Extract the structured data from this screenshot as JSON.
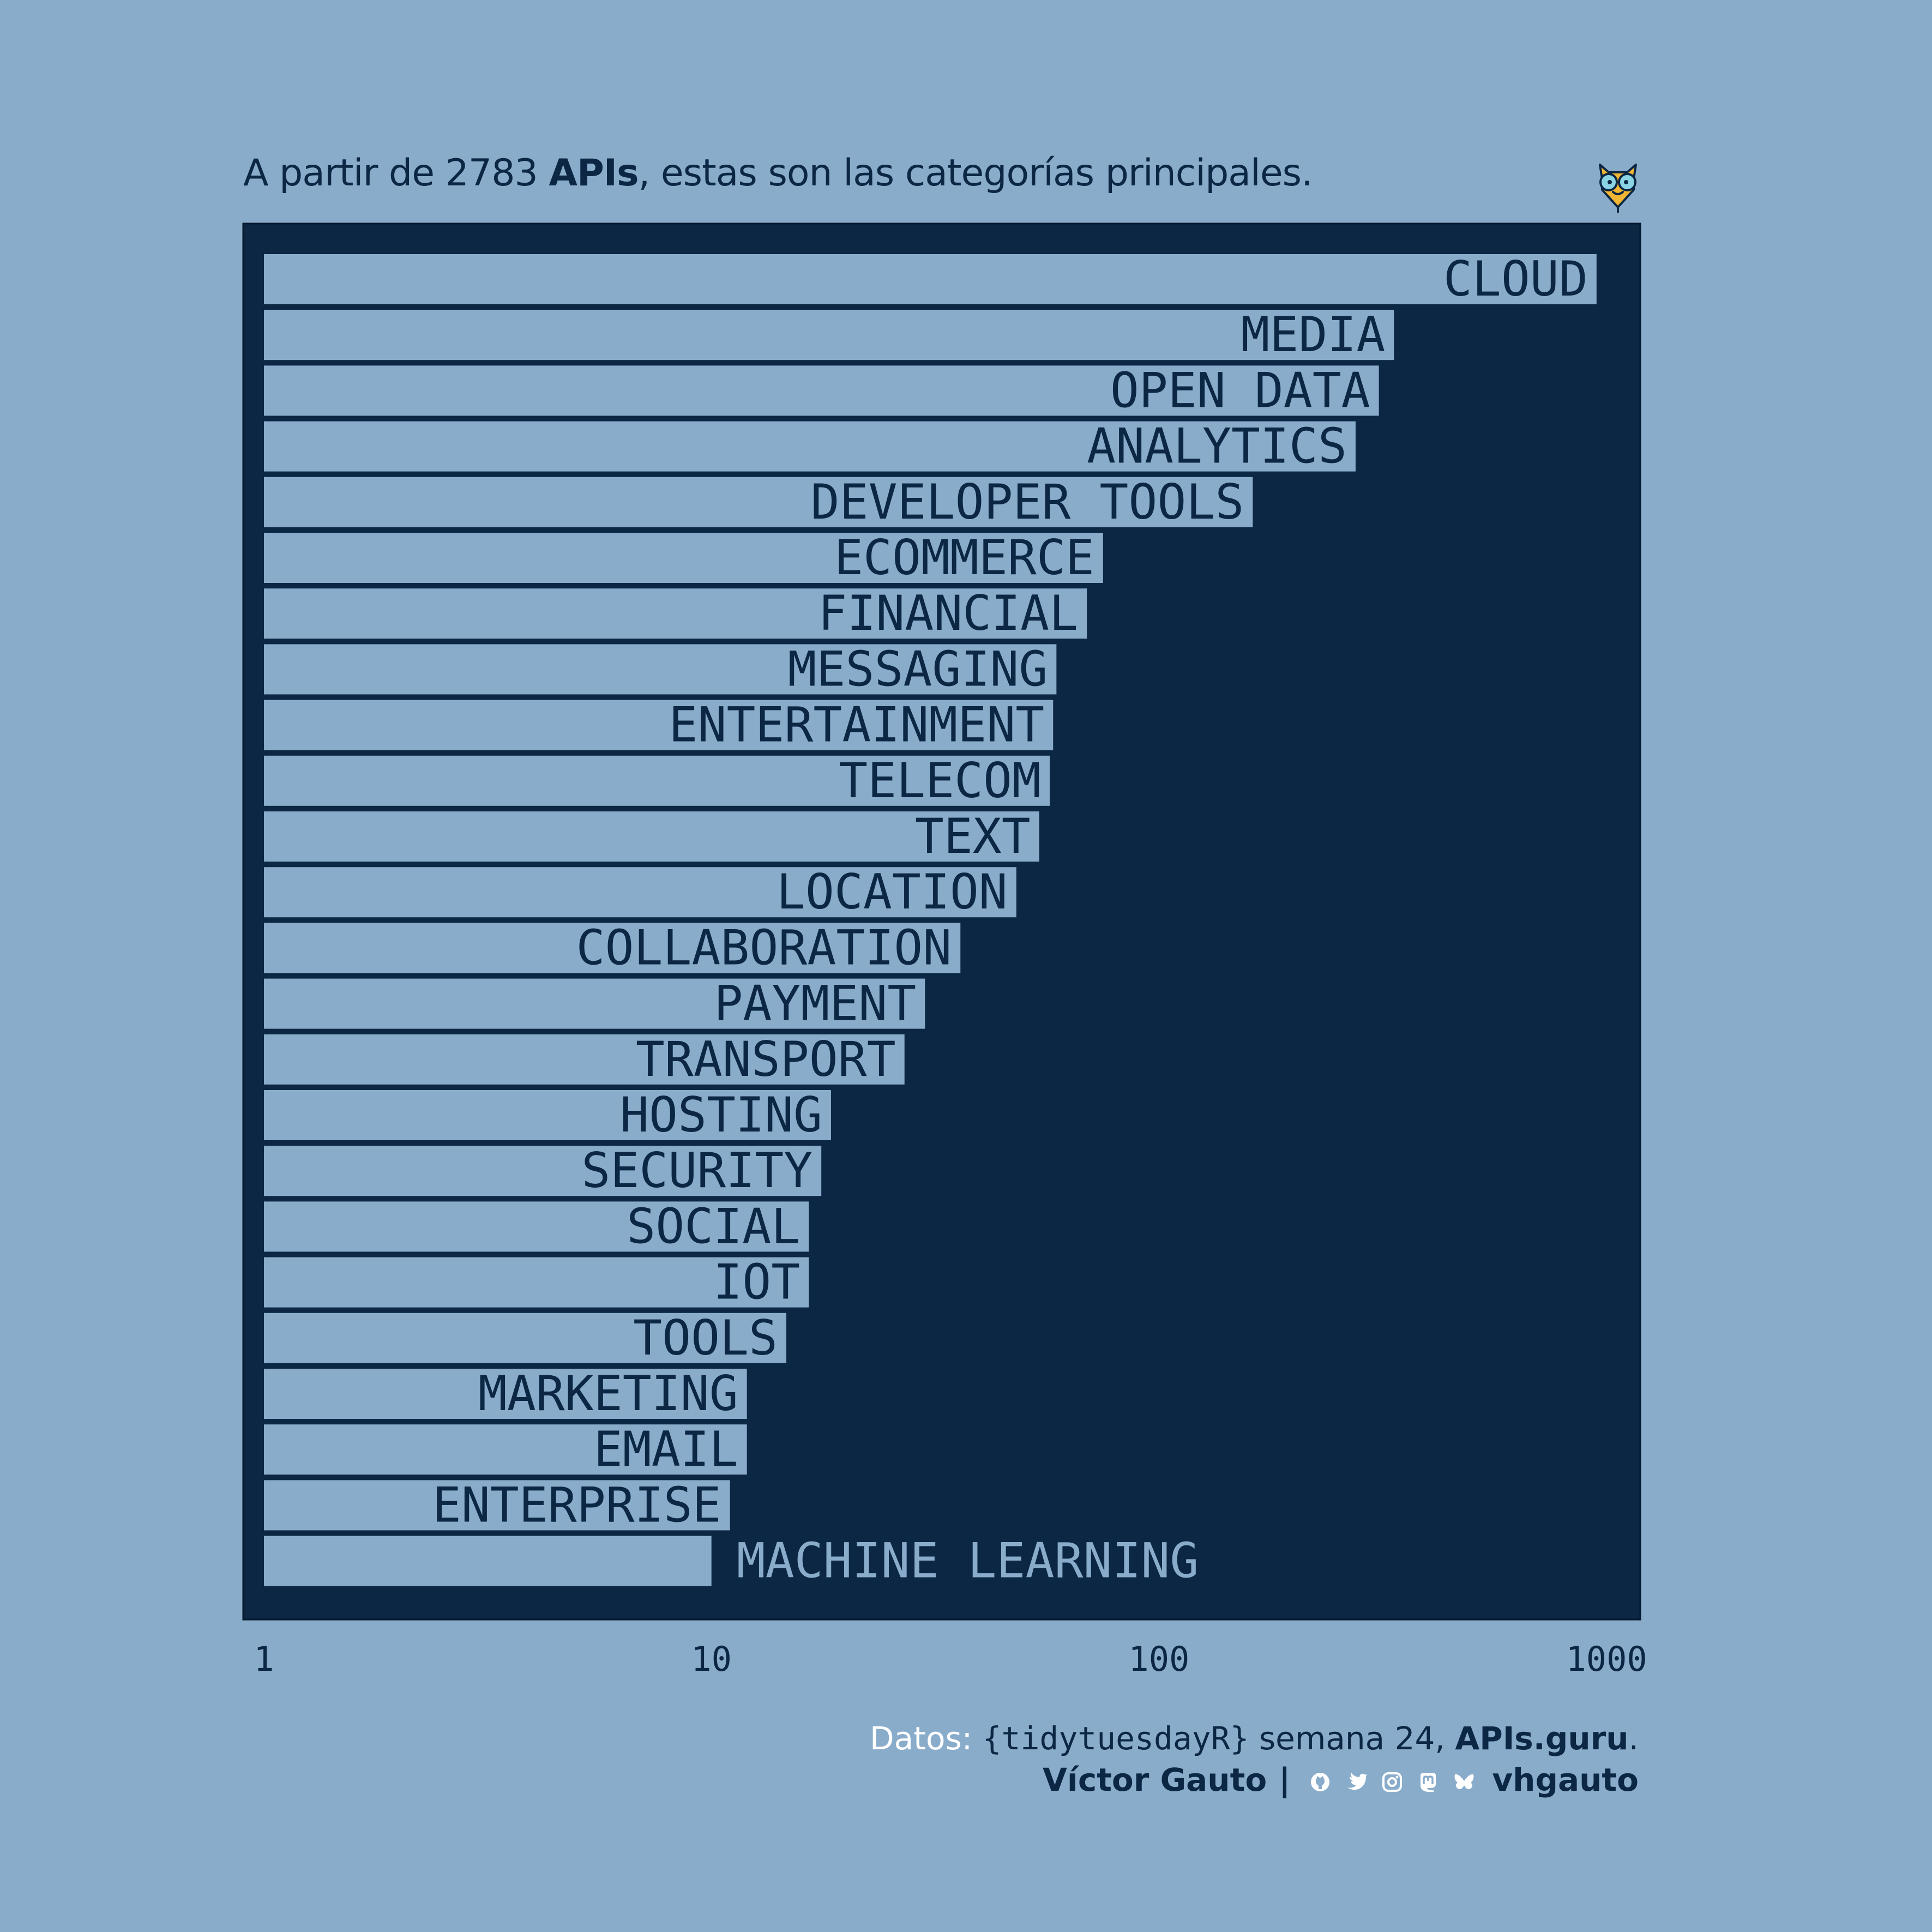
{
  "subtitle": {
    "prefix": "A partir de 2783 ",
    "bold": "APIs",
    "suffix": ", estas son las categorías principales."
  },
  "colors": {
    "background": "#8aaccb",
    "panel": "#0b2744",
    "bar": "#8aaccb",
    "text_dark": "#0b2744",
    "text_light": "#ffffff"
  },
  "chart_data": {
    "type": "bar",
    "orientation": "horizontal",
    "scale": "log10",
    "xlim": [
      1,
      1000
    ],
    "xticks": [
      "1",
      "10",
      "100",
      "1000"
    ],
    "categories": [
      "CLOUD",
      "MEDIA",
      "OPEN DATA",
      "ANALYTICS",
      "DEVELOPER TOOLS",
      "ECOMMERCE",
      "FINANCIAL",
      "MESSAGING",
      "ENTERTAINMENT",
      "TELECOM",
      "TEXT",
      "LOCATION",
      "COLLABORATION",
      "PAYMENT",
      "TRANSPORT",
      "HOSTING",
      "SECURITY",
      "SOCIAL",
      "IOT",
      "TOOLS",
      "MARKETING",
      "EMAIL",
      "ENTERPRISE",
      "MACHINE LEARNING"
    ],
    "values": [
      950,
      335,
      310,
      275,
      162,
      75,
      69,
      59,
      58,
      57,
      54,
      48,
      36,
      30,
      27,
      18.5,
      17.6,
      16.5,
      16.5,
      14.7,
      12,
      12,
      11,
      10
    ],
    "grid": false,
    "legend": "none"
  },
  "caption": {
    "line1_prefix": "Datos: ",
    "line1_mono": "{tidytuesdayR}",
    "line1_mid": " semana 24, ",
    "line1_bold": "APIs.guru",
    "line1_end": ".",
    "author": "Víctor Gauto",
    "separator": "|",
    "handle": "vhgauto",
    "icons": [
      "github-icon",
      "twitter-icon",
      "instagram-icon",
      "mastodon-icon",
      "bluesky-icon"
    ]
  }
}
